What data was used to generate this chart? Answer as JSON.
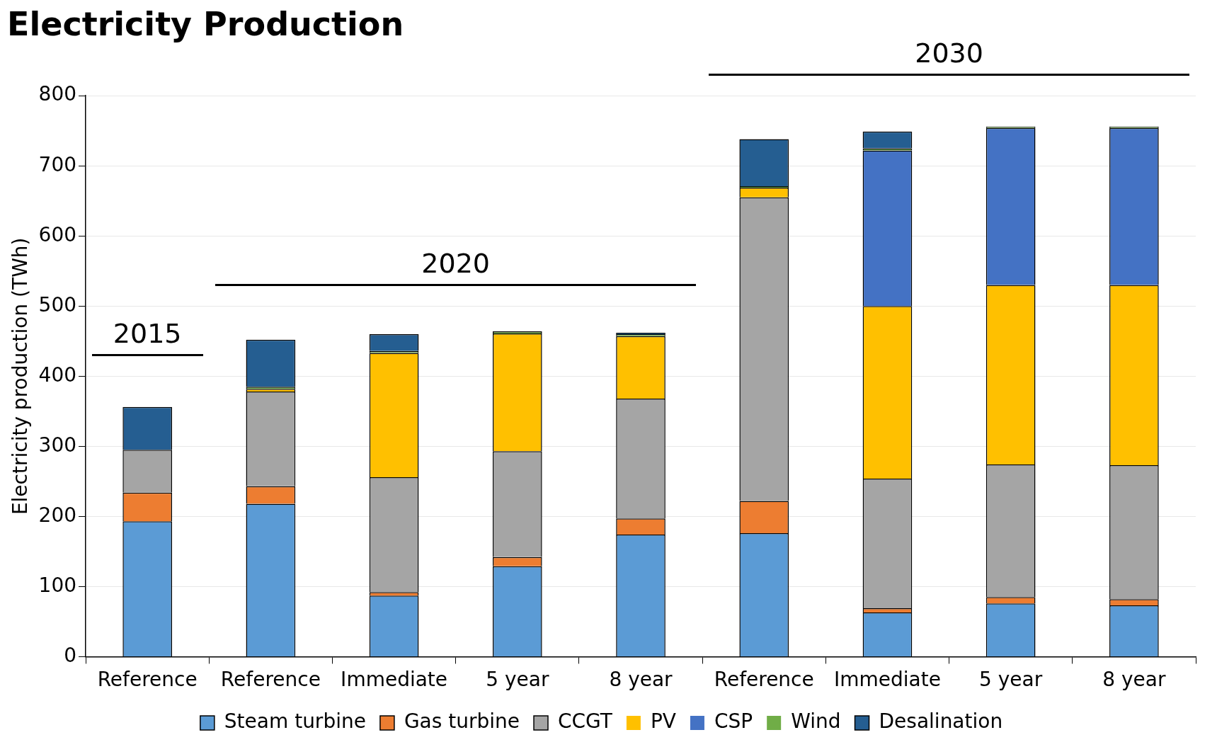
{
  "chart_data": {
    "type": "bar",
    "title": "Electricity Production",
    "ylabel": "Electricity production (TWh)",
    "categories": [
      "Reference",
      "Reference",
      "Immediate",
      "5 year",
      "8 year",
      "Reference",
      "Immediate",
      "5 year",
      "8 year"
    ],
    "stacked": true,
    "ylim": [
      0,
      800
    ],
    "yticks": [
      0,
      100,
      200,
      300,
      400,
      500,
      600,
      700,
      800
    ],
    "grid": "y",
    "legend": "bottom",
    "annotations": [
      "2015",
      "2020",
      "2030"
    ],
    "series": [
      {
        "name": "Steam turbine",
        "color": "#5b9bd5",
        "values": [
          193,
          218,
          87,
          129,
          174,
          176,
          63,
          76,
          73
        ]
      },
      {
        "name": "Gas turbine",
        "color": "#ed7d31",
        "values": [
          41,
          25,
          5,
          13,
          23,
          46,
          6,
          9,
          9
        ]
      },
      {
        "name": "CCGT",
        "color": "#a5a5a5",
        "values": [
          61,
          135,
          164,
          151,
          171,
          433,
          185,
          189,
          191
        ]
      },
      {
        "name": "PV",
        "color": "#ffc000",
        "values": [
          null,
          4,
          177,
          168,
          89,
          14,
          246,
          256,
          257
        ]
      },
      {
        "name": "CSP",
        "color": "#4472c4",
        "values": [
          null,
          null,
          null,
          null,
          null,
          null,
          222,
          224,
          224
        ]
      },
      {
        "name": "Wind",
        "color": "#70ad47",
        "values": [
          null,
          3,
          3,
          3,
          3,
          2,
          3,
          2,
          2
        ]
      },
      {
        "name": "Desalination",
        "color": "#255e91",
        "values": [
          61,
          67,
          24,
          null,
          2,
          67,
          24,
          null,
          null
        ]
      }
    ]
  }
}
